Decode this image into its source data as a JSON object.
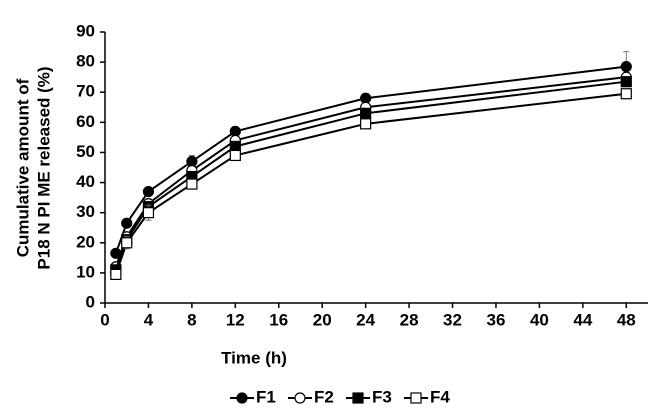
{
  "chart_data": {
    "type": "line",
    "x_label": "Time (h)",
    "y_label": [
      "Cumulative amount of",
      "P18 N PI ME released (%)"
    ],
    "x": [
      1,
      2,
      4,
      8,
      12,
      24,
      48
    ],
    "series": [
      {
        "name": "F1",
        "color": "#000000",
        "marker": "filled-circle",
        "values": [
          16.5,
          26.5,
          37,
          47,
          57,
          68,
          78.5
        ],
        "errors": [
          1,
          1,
          1,
          2,
          1.5,
          1.5,
          5
        ]
      },
      {
        "name": "F2",
        "color": "#000000",
        "marker": "open-circle",
        "values": [
          12,
          22,
          33,
          44,
          54,
          65,
          75
        ],
        "errors": [
          1.5,
          1.5,
          1.5,
          1.5,
          1.5,
          1.5,
          1.5
        ]
      },
      {
        "name": "F3",
        "color": "#000000",
        "marker": "filled-square",
        "values": [
          11,
          21,
          32,
          42,
          52,
          63,
          73.5
        ],
        "errors": [
          1.5,
          1.5,
          1.5,
          1.5,
          1.5,
          1.5,
          1.5
        ]
      },
      {
        "name": "F4",
        "color": "#000000",
        "marker": "open-square",
        "values": [
          9.5,
          20,
          30,
          39.5,
          49,
          59.5,
          69.5
        ],
        "errors": [
          1.5,
          2,
          2.5,
          1.5,
          1.5,
          1.5,
          1.5
        ]
      }
    ],
    "xlim": [
      0,
      50
    ],
    "xticks": [
      0,
      4,
      8,
      12,
      16,
      20,
      24,
      28,
      32,
      36,
      40,
      44,
      48
    ],
    "ylim": [
      0,
      90
    ],
    "yticks": [
      0,
      10,
      20,
      30,
      40,
      50,
      60,
      70,
      80,
      90
    ],
    "legend": "bottom",
    "grid": false
  }
}
